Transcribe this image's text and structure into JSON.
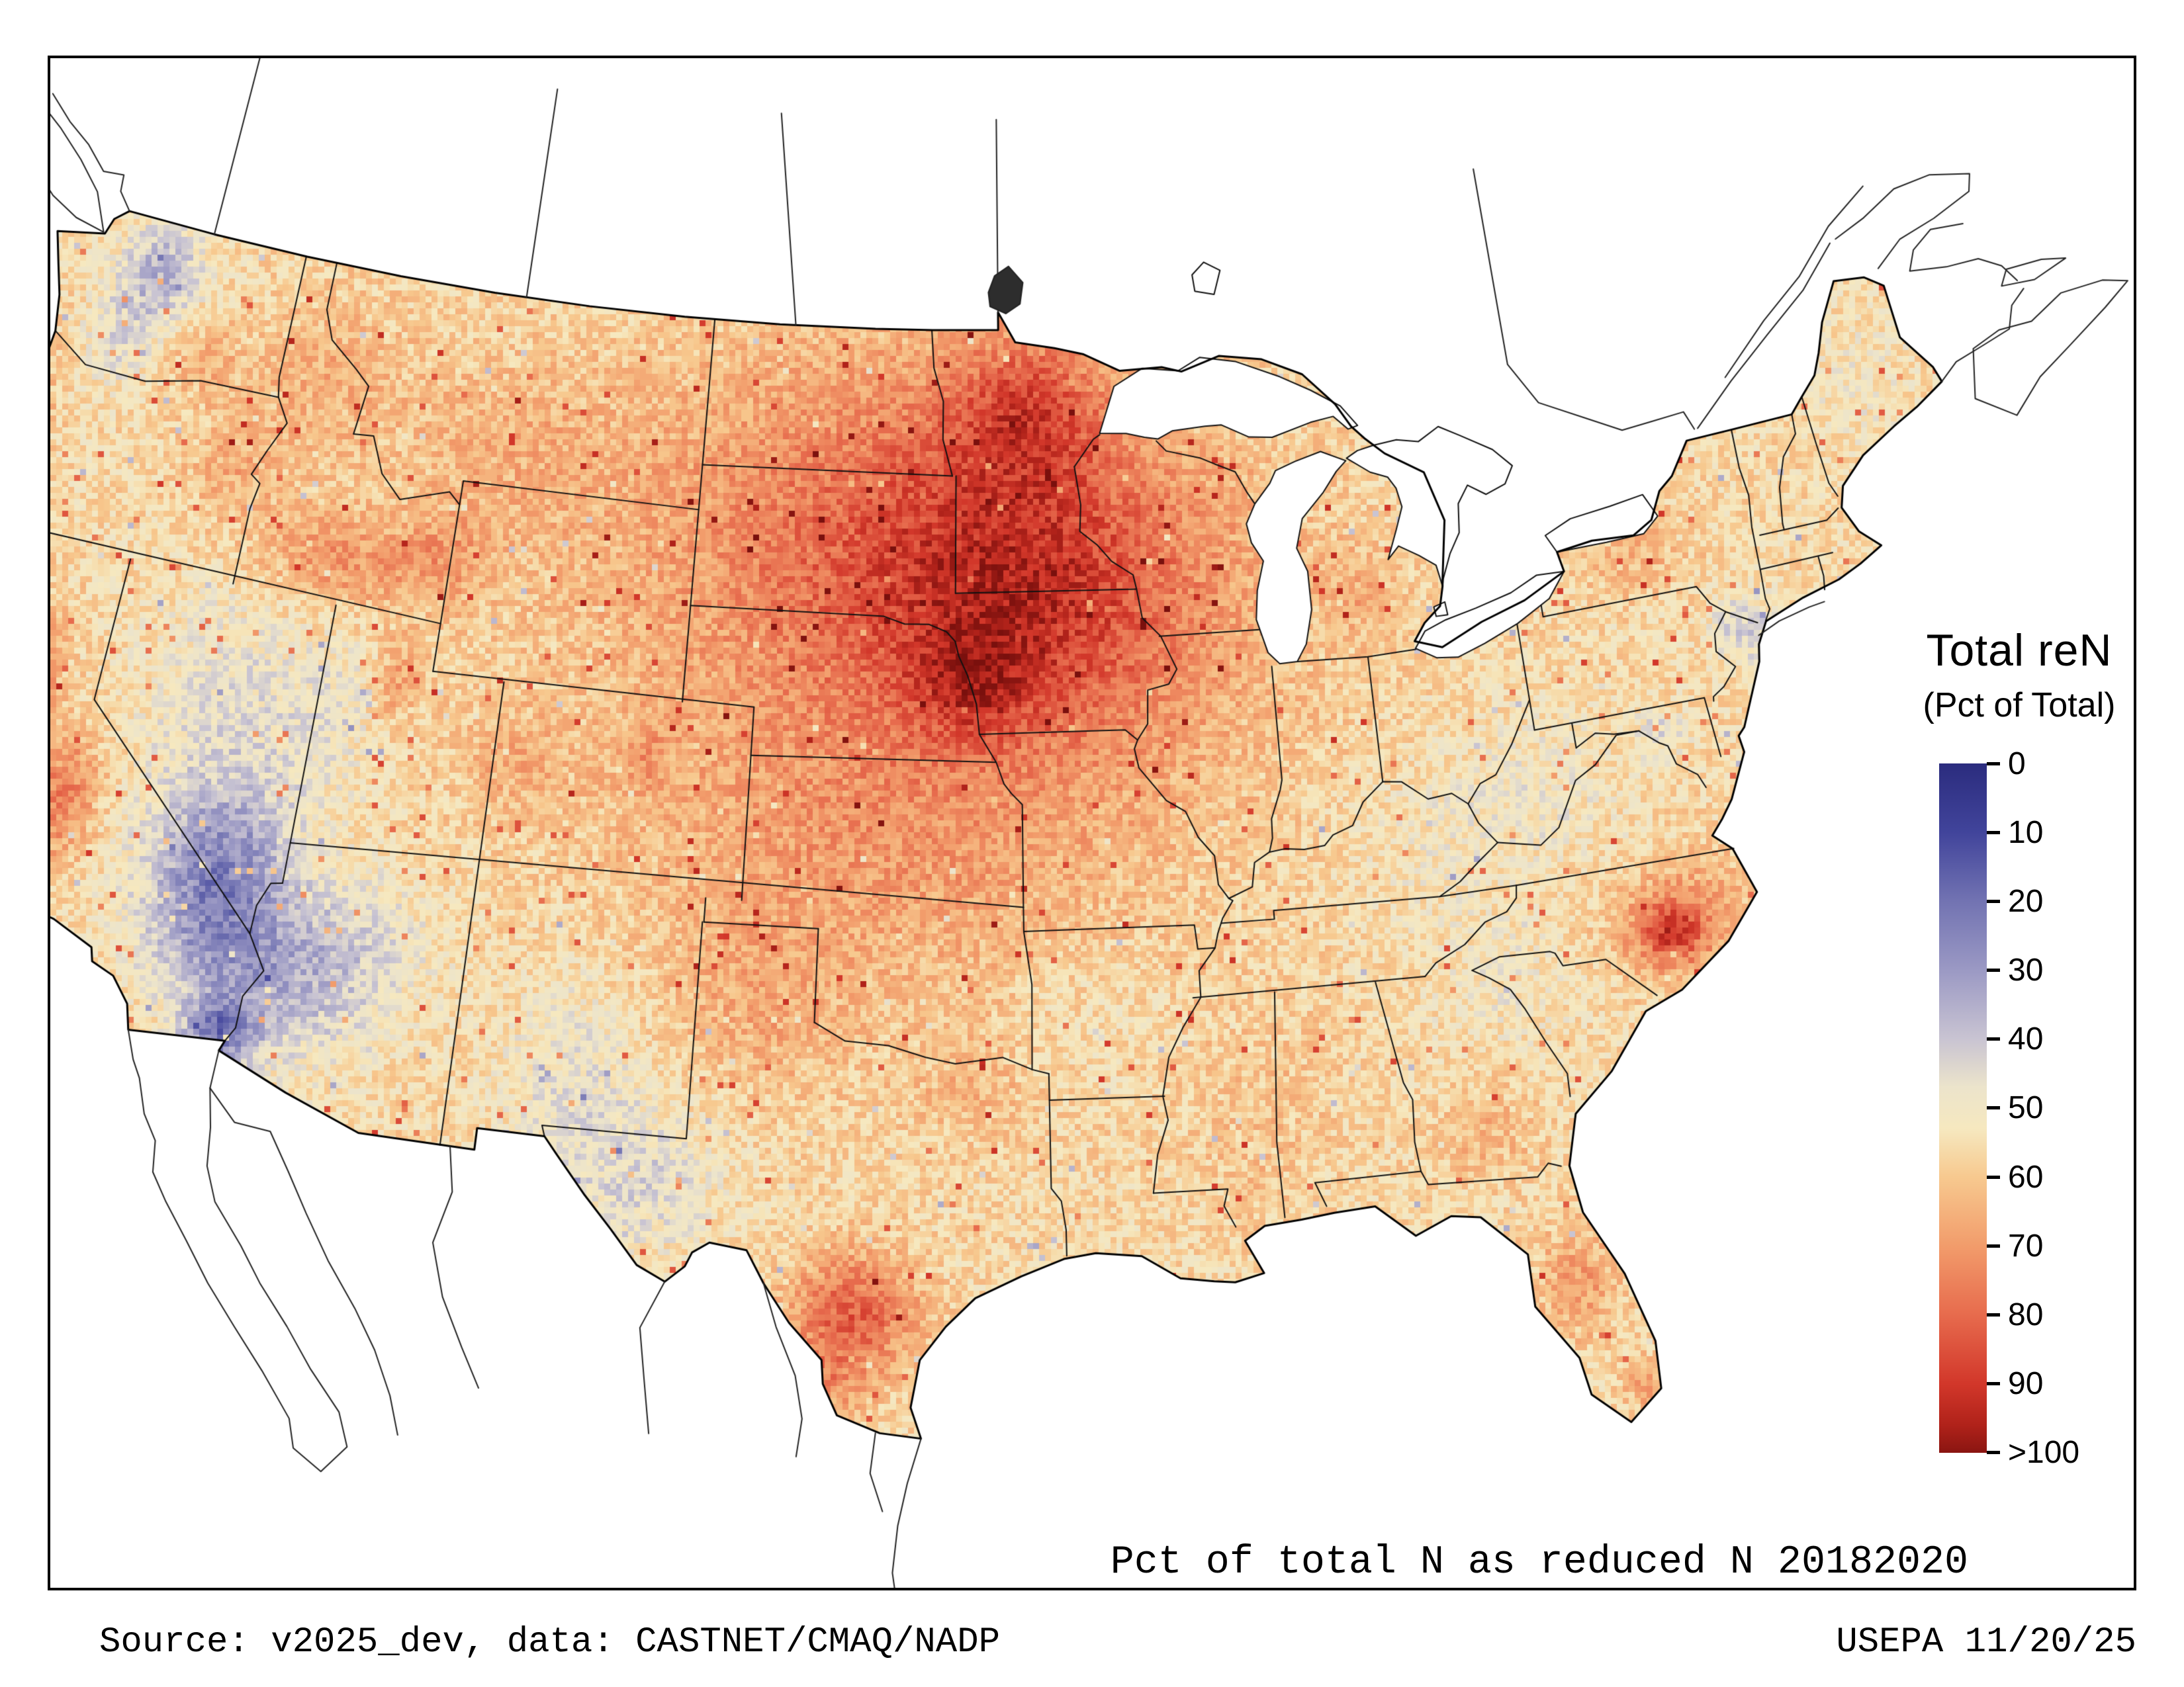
{
  "page": {
    "caption": "Pct of total N as reduced N 20182020",
    "source": "Source: v2025_dev, data: CASTNET/CMAQ/NADP",
    "credit": "USEPA 11/20/25"
  },
  "legend": {
    "title": "Total reN",
    "subtitle": "(Pct of Total)",
    "ticks": [
      "0",
      "10",
      "20",
      "30",
      "40",
      "50",
      "60",
      "70",
      "80",
      "90",
      ">100"
    ]
  },
  "map_data": {
    "type": "heatmap",
    "variable": "Total reN (Pct of Total)",
    "region": "Continental United States",
    "period": "20182020",
    "colormap": [
      {
        "value": 0,
        "color": "#2b2c7e"
      },
      {
        "value": 10,
        "color": "#41449b"
      },
      {
        "value": 20,
        "color": "#7273b2"
      },
      {
        "value": 30,
        "color": "#9b99c4"
      },
      {
        "value": 40,
        "color": "#c9c4d2"
      },
      {
        "value": 47,
        "color": "#ece4cb"
      },
      {
        "value": 53,
        "color": "#f6e8bf"
      },
      {
        "value": 60,
        "color": "#f7c98f"
      },
      {
        "value": 70,
        "color": "#f29c6b"
      },
      {
        "value": 80,
        "color": "#e76b4d"
      },
      {
        "value": 90,
        "color": "#d2372a"
      },
      {
        "value": 96,
        "color": "#b0221a"
      },
      {
        "value": 100,
        "color": "#8a1511"
      },
      {
        "value": 105,
        "color": "#7a100d"
      }
    ],
    "field": {
      "base": 56,
      "noise": 8,
      "spike_high": 26,
      "spike_low": -16,
      "bumps": [
        [
          -94.2,
          43.6,
          24,
          5.2,
          3.2
        ],
        [
          -95.9,
          41.6,
          14,
          1.6,
          1.2
        ],
        [
          -94.3,
          47.4,
          19,
          2.4,
          1.6
        ],
        [
          -99.5,
          45.2,
          10,
          6.5,
          3.5
        ],
        [
          -97.5,
          42.0,
          12,
          10,
          6.5
        ],
        [
          -99.0,
          38.0,
          6,
          5,
          2.5
        ],
        [
          -101.6,
          34.6,
          7,
          2.5,
          2.0
        ],
        [
          -98.8,
          28.5,
          26,
          1.5,
          1.3
        ],
        [
          -99.5,
          27.0,
          12,
          1.0,
          0.8
        ],
        [
          -96.0,
          33.3,
          6,
          1.5,
          1.2
        ],
        [
          -77.6,
          35.3,
          17,
          1.8,
          1.2
        ],
        [
          -77.9,
          35.1,
          20,
          0.8,
          0.6
        ],
        [
          -121.9,
          39.2,
          20,
          0.8,
          1.4
        ],
        [
          -120.2,
          36.9,
          20,
          1.0,
          1.4
        ],
        [
          -114.3,
          42.9,
          15,
          2.4,
          1.0
        ],
        [
          -117.8,
          44.3,
          9,
          1.6,
          1.2
        ],
        [
          -119.3,
          46.4,
          8,
          1.4,
          0.9
        ],
        [
          -115.6,
          46.6,
          9,
          2.2,
          1.8
        ],
        [
          -111.3,
          43.4,
          10,
          1.4,
          0.9
        ],
        [
          -110.0,
          45.8,
          7,
          3.5,
          2.0
        ],
        [
          -112.0,
          40.7,
          12,
          0.6,
          0.9
        ],
        [
          -104.9,
          39.8,
          9,
          0.6,
          0.8
        ],
        [
          -108.6,
          39.4,
          7,
          1.4,
          1.0
        ],
        [
          -123.9,
          44.2,
          9,
          0.7,
          1.8
        ],
        [
          -123.5,
          40.8,
          14,
          0.8,
          1.5
        ],
        [
          -81.6,
          28.3,
          13,
          1.0,
          1.2
        ],
        [
          -80.35,
          25.9,
          12,
          0.6,
          0.6
        ],
        [
          -83.3,
          31.6,
          8,
          1.2,
          1.0
        ],
        [
          -84.8,
          43.1,
          7,
          1.0,
          1.0
        ],
        [
          -76.8,
          42.9,
          8,
          1.6,
          0.9
        ],
        [
          -88.8,
          32.3,
          5,
          1.8,
          2.2
        ],
        [
          -115.8,
          36.3,
          -26,
          1.8,
          1.7
        ],
        [
          -115.4,
          34.6,
          -16,
          1.8,
          1.4
        ],
        [
          -113.3,
          34.1,
          -15,
          2.0,
          1.7
        ],
        [
          -111.6,
          35.3,
          -9,
          2.0,
          1.6
        ],
        [
          -116.6,
          39.6,
          -9,
          2.4,
          2.8
        ],
        [
          -113.6,
          39.6,
          -7,
          1.6,
          2.0
        ],
        [
          -114.9,
          32.85,
          -30,
          0.9,
          0.7
        ],
        [
          -121.3,
          47.9,
          -20,
          1.3,
          1.1
        ],
        [
          -122.0,
          46.3,
          -9,
          1.1,
          1.0
        ],
        [
          -104.6,
          31.8,
          -8,
          2.6,
          2.0
        ],
        [
          -106.2,
          33.8,
          -7,
          1.6,
          2.2
        ],
        [
          -103.8,
          30.8,
          -6,
          1.5,
          1.2
        ],
        [
          -74.3,
          40.9,
          -13,
          0.9,
          0.8
        ],
        [
          -77.1,
          39.2,
          -9,
          0.7,
          0.6
        ],
        [
          -80.5,
          38.6,
          -6,
          2.2,
          1.6
        ],
        [
          -84.0,
          37.8,
          -5,
          3.0,
          2.0
        ],
        [
          -82.3,
          34.6,
          -5,
          2.2,
          1.4
        ],
        [
          -92.8,
          34.9,
          -4,
          2.0,
          1.5
        ],
        [
          -69.3,
          45.3,
          -5,
          1.6,
          1.6
        ]
      ]
    }
  }
}
